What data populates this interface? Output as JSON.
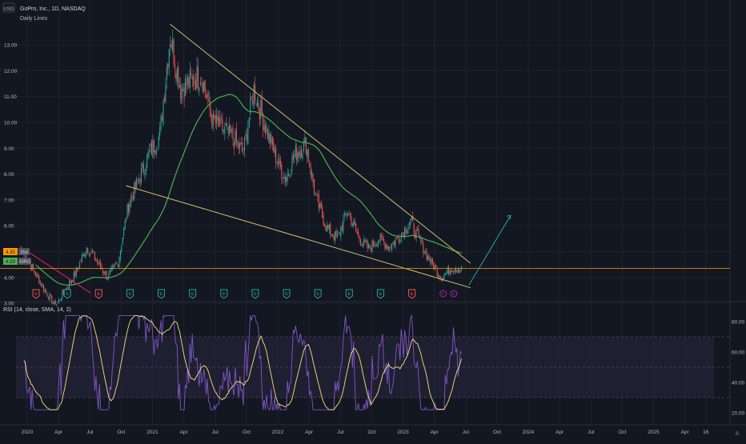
{
  "header": {
    "currency": "USD",
    "title": "GoPro, Inc., 1D, NASDAQ",
    "subtitle": "Daily Lines",
    "corner_logo": "A"
  },
  "price_pane": {
    "y_ticks": [
      "13.00",
      "12.00",
      "11.00",
      "10.00",
      "9.00",
      "8.00",
      "7.00",
      "6.00",
      "5.00",
      "4.00",
      "3.00"
    ],
    "last_price_label": "4.35",
    "flag_text": "2bd",
    "sma_label": "4.29",
    "sma_tag": "SIRO",
    "colors": {
      "up": "#26a69a",
      "down": "#ef5350",
      "sma": "#4caf50",
      "trendline": "#d6c06a",
      "arrow": "#26a69a",
      "price_line": "#ff9800"
    }
  },
  "rsi_pane": {
    "title": "RSI (14, close, SMA, 14, 2)",
    "y_ticks": [
      "80.00",
      "60.00",
      "40.00",
      "20.00"
    ],
    "colors": {
      "rsi": "#7e57c2",
      "sma": "#f7e17b",
      "band": "#2a2640"
    }
  },
  "time_axis": {
    "labels": [
      "2020",
      "Apr",
      "Jul",
      "Oct",
      "2021",
      "Apr",
      "Jul",
      "Oct",
      "2022",
      "Apr",
      "Jul",
      "Oct",
      "2023",
      "Apr",
      "Jul",
      "Oct",
      "2024",
      "Apr",
      "Jul",
      "Oct",
      "2025",
      "Apr",
      "16"
    ]
  },
  "markers": [
    {
      "type": "dividend",
      "color": "#ef5350",
      "text": "E"
    },
    {
      "type": "earnings",
      "color": "#26a69a",
      "text": "E"
    },
    {
      "type": "earnings",
      "color": "#ef5350",
      "text": "E"
    },
    {
      "type": "earnings",
      "color": "#26a69a",
      "text": "E"
    },
    {
      "type": "earnings",
      "color": "#26a69a",
      "text": "E"
    },
    {
      "type": "earnings",
      "color": "#26a69a",
      "text": "E"
    },
    {
      "type": "earnings",
      "color": "#26a69a",
      "text": "E"
    },
    {
      "type": "earnings",
      "color": "#26a69a",
      "text": "E"
    },
    {
      "type": "earnings",
      "color": "#26a69a",
      "text": "E"
    },
    {
      "type": "earnings",
      "color": "#26a69a",
      "text": "E"
    },
    {
      "type": "earnings",
      "color": "#26a69a",
      "text": "E"
    },
    {
      "type": "earnings",
      "color": "#26a69a",
      "text": "E"
    },
    {
      "type": "earnings",
      "color": "#ef5350",
      "text": "E"
    },
    {
      "type": "earnings",
      "color": "#9c27b0",
      "text": "F"
    },
    {
      "type": "earnings",
      "color": "#9c27b0",
      "text": "E"
    }
  ],
  "chart_data": {
    "type": "candlestick",
    "close_path": [
      [
        "2020-01",
        4.9
      ],
      [
        "2020-03",
        3.5
      ],
      [
        "2020-04",
        2.9
      ],
      [
        "2020-06",
        4.2
      ],
      [
        "2020-07",
        5.2
      ],
      [
        "2020-09",
        4.0
      ],
      [
        "2020-10",
        4.6
      ],
      [
        "2020-11",
        6.8
      ],
      [
        "2021-01",
        8.8
      ],
      [
        "2021-02",
        9.5
      ],
      [
        "2021-03",
        13.4
      ],
      [
        "2021-04",
        11.3
      ],
      [
        "2021-06",
        11.9
      ],
      [
        "2021-07",
        10.1
      ],
      [
        "2021-09",
        9.4
      ],
      [
        "2021-10",
        8.8
      ],
      [
        "2021-11",
        11.3
      ],
      [
        "2021-12",
        10.0
      ],
      [
        "2022-01",
        8.8
      ],
      [
        "2022-02",
        7.8
      ],
      [
        "2022-03",
        8.8
      ],
      [
        "2022-04",
        9.2
      ],
      [
        "2022-05",
        7.0
      ],
      [
        "2022-06",
        5.9
      ],
      [
        "2022-07",
        5.5
      ],
      [
        "2022-08",
        6.6
      ],
      [
        "2022-09",
        5.6
      ],
      [
        "2022-10",
        5.1
      ],
      [
        "2022-11",
        5.5
      ],
      [
        "2022-12",
        5.2
      ],
      [
        "2023-01",
        5.6
      ],
      [
        "2023-02",
        6.2
      ],
      [
        "2023-03",
        5.3
      ],
      [
        "2023-04",
        4.6
      ],
      [
        "2023-05",
        4.0
      ],
      [
        "2023-06",
        4.4
      ],
      [
        "2023-07",
        4.3
      ]
    ],
    "ylim": [
      2.9,
      13.6
    ],
    "rsi_ylim": [
      20,
      85
    ]
  }
}
